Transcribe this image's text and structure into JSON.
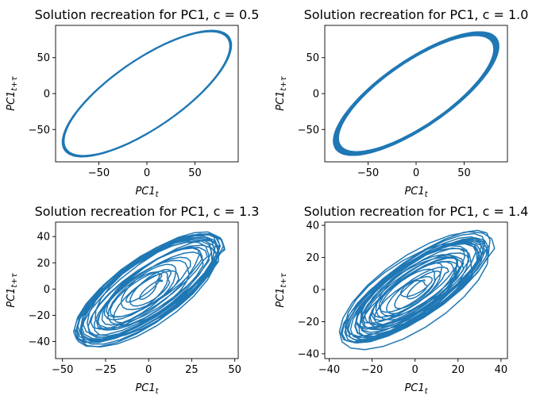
{
  "colors": {
    "line": "#1f77b4"
  },
  "chart_data": [
    {
      "type": "line",
      "title": "Solution recreation for PC1, c = 0.5",
      "xlabel_base": "PC1",
      "xlabel_sub": "t",
      "ylabel_base": "PC1",
      "ylabel_sub": "t+τ",
      "xlim": [
        -95,
        95
      ],
      "ylim": [
        -95,
        95
      ],
      "xticks": [
        -50,
        0,
        50
      ],
      "yticks": [
        -50,
        0,
        50
      ],
      "x_tick_labels": [
        "−50",
        "0",
        "50"
      ],
      "y_tick_labels": [
        "−50",
        "0",
        "50"
      ],
      "trajectory": {
        "shape": "limit-cycle",
        "amplitude": 88,
        "phase_lag_deg": 40,
        "loops": 6,
        "band_spread": 0.02
      }
    },
    {
      "type": "line",
      "title": "Solution recreation for PC1, c = 1.0",
      "xlabel_base": "PC1",
      "xlabel_sub": "t",
      "ylabel_base": "PC1",
      "ylabel_sub": "t+τ",
      "xlim": [
        -95,
        95
      ],
      "ylim": [
        -95,
        95
      ],
      "xticks": [
        -50,
        0,
        50
      ],
      "yticks": [
        -50,
        0,
        50
      ],
      "x_tick_labels": [
        "−50",
        "0",
        "50"
      ],
      "y_tick_labels": [
        "−50",
        "0",
        "50"
      ],
      "trajectory": {
        "shape": "limit-cycle",
        "amplitude": 86,
        "phase_lag_deg": 40,
        "loops": 10,
        "band_spread": 0.06
      }
    },
    {
      "type": "line",
      "title": "Solution recreation for PC1, c = 1.3",
      "xlabel_base": "PC1",
      "xlabel_sub": "t",
      "ylabel_base": "PC1",
      "ylabel_sub": "t+τ",
      "xlim": [
        -54,
        52
      ],
      "ylim": [
        -53,
        51
      ],
      "xticks": [
        -50,
        -25,
        0,
        25,
        50
      ],
      "yticks": [
        -40,
        -20,
        0,
        20,
        40
      ],
      "x_tick_labels": [
        "−50",
        "−25",
        "0",
        "25",
        "50"
      ],
      "y_tick_labels": [
        "−40",
        "−20",
        "0",
        "20",
        "40"
      ],
      "trajectory": {
        "shape": "chaotic",
        "amplitude": 46,
        "phase_lag_deg": 40,
        "loops": 28,
        "seed": 3
      }
    },
    {
      "type": "line",
      "title": "Solution recreation for PC1, c = 1.4",
      "xlabel_base": "PC1",
      "xlabel_sub": "t",
      "ylabel_base": "PC1",
      "ylabel_sub": "t+τ",
      "xlim": [
        -42,
        43
      ],
      "ylim": [
        -43,
        42
      ],
      "xticks": [
        -40,
        -20,
        0,
        20,
        40
      ],
      "yticks": [
        -40,
        -20,
        0,
        20,
        40
      ],
      "x_tick_labels": [
        "−40",
        "−20",
        "0",
        "20",
        "40"
      ],
      "y_tick_labels": [
        "−40",
        "−20",
        "0",
        "20",
        "40"
      ],
      "trajectory": {
        "shape": "chaotic",
        "amplitude": 37,
        "phase_lag_deg": 40,
        "loops": 32,
        "seed": 7
      }
    }
  ]
}
